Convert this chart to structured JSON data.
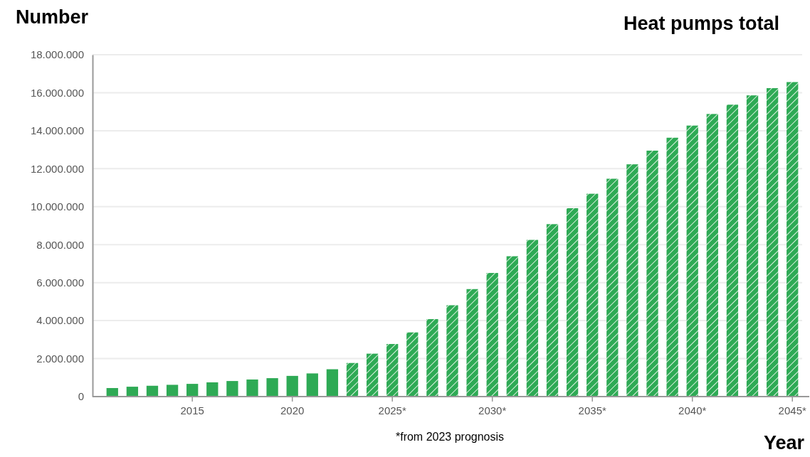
{
  "chart_data": {
    "type": "bar",
    "title": "Heat pumps total",
    "ylabel": "Number",
    "xlabel": "Year",
    "annotations": [
      "*from 2023 prognosis"
    ],
    "categories": [
      null,
      null,
      null,
      null,
      "2015",
      null,
      null,
      null,
      null,
      "2020",
      null,
      null,
      null,
      null,
      "2025*",
      null,
      null,
      null,
      null,
      "2030*",
      null,
      null,
      null,
      null,
      "2035*",
      null,
      null,
      null,
      null,
      "2040*",
      null,
      null,
      null,
      null,
      "2045*"
    ],
    "stacked": true,
    "series": [
      {
        "color": "#2eaa55",
        "values": [
          450000,
          520000,
          570000,
          620000,
          670000,
          750000,
          820000,
          900000,
          970000,
          1090000,
          1220000,
          1440000,
          null,
          null,
          null,
          null,
          null,
          null,
          null,
          null,
          null,
          null,
          null,
          null,
          null,
          null,
          null,
          null,
          null,
          null,
          null,
          null,
          null,
          null,
          null
        ]
      },
      {
        "color": "#2eaa55",
        "values": [
          null,
          null,
          null,
          null,
          null,
          null,
          null,
          null,
          null,
          null,
          null,
          null,
          1770000,
          2260000,
          2770000,
          3380000,
          4080000,
          4810000,
          5660000,
          6510000,
          7390000,
          8250000,
          9080000,
          9920000,
          10680000,
          11470000,
          12230000,
          12950000,
          13630000,
          14270000,
          14880000,
          15370000,
          15860000,
          16240000,
          16560000
        ]
      }
    ],
    "ylim": [
      0,
      18000000
    ],
    "yticks": [
      {
        "value": 0,
        "label": "0"
      },
      {
        "value": 2000000,
        "label": "2.000.000"
      },
      {
        "value": 4000000,
        "label": "4.000.000"
      },
      {
        "value": 6000000,
        "label": "6.000.000"
      },
      {
        "value": 8000000,
        "label": "8.000.000"
      },
      {
        "value": 10000000,
        "label": "10.000.000"
      },
      {
        "value": 12000000,
        "label": "12.000.000"
      },
      {
        "value": 14000000,
        "label": "14.000.000"
      },
      {
        "value": 16000000,
        "label": "16.000.000"
      },
      {
        "value": 18000000,
        "label": "18.000.000"
      }
    ],
    "grid": "y"
  }
}
